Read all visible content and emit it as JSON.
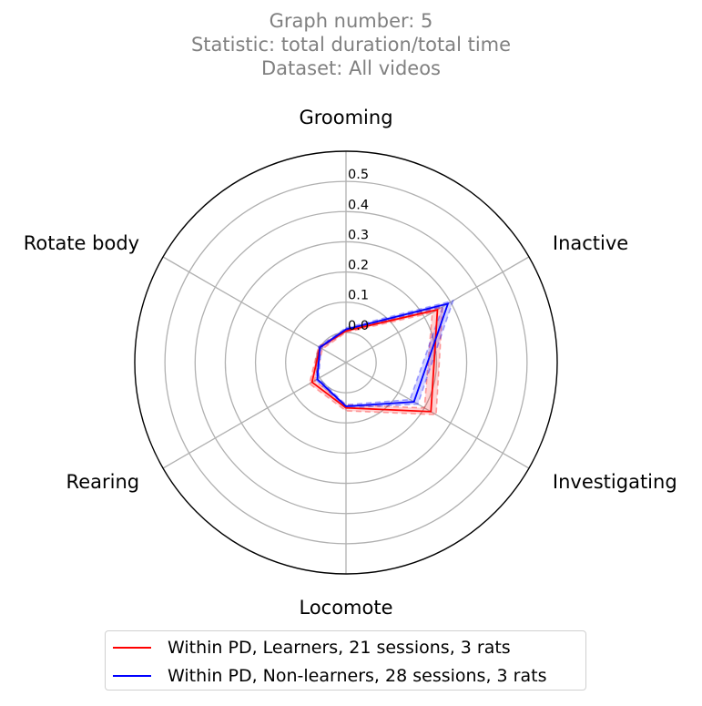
{
  "title": {
    "line1": "Graph number: 5",
    "line2": "Statistic: total duration/total time",
    "line3": "Dataset: All videos"
  },
  "chart_data": {
    "type": "radar",
    "categories": [
      "Grooming",
      "Inactive",
      "Investigating",
      "Locomote",
      "Rearing",
      "Rotate body"
    ],
    "radial_ticks": [
      0.0,
      0.1,
      0.2,
      0.3,
      0.4,
      0.5
    ],
    "radial_tick_labels": [
      "0.0",
      "0.1",
      "0.2",
      "0.3",
      "0.4",
      "0.5"
    ],
    "rlim": [
      -0.1,
      0.6
    ],
    "grid": true,
    "legend_position": "bottom-center",
    "series": [
      {
        "name": "Within PD, Learners, 21 sessions, 3 rats",
        "color": "#ff0000",
        "values": [
          0.005,
          0.25,
          0.225,
          0.05,
          0.03,
          0.0
        ],
        "lower": [
          0.0,
          0.23,
          0.2,
          0.04,
          0.02,
          -0.01
        ],
        "upper": [
          0.01,
          0.27,
          0.245,
          0.06,
          0.04,
          0.005
        ]
      },
      {
        "name": "Within PD, Non-learners, 28 sessions, 3 rats",
        "color": "#0000ff",
        "values": [
          0.01,
          0.29,
          0.16,
          0.045,
          0.01,
          0.0
        ],
        "lower": [
          0.005,
          0.27,
          0.145,
          0.04,
          0.005,
          -0.005
        ],
        "upper": [
          0.015,
          0.31,
          0.175,
          0.05,
          0.015,
          0.005
        ]
      }
    ]
  }
}
